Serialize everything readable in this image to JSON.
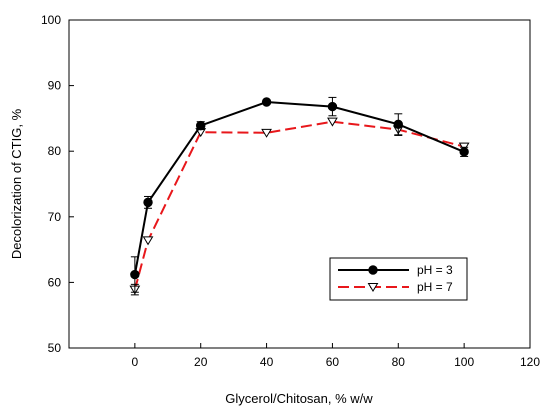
{
  "chart_data": {
    "type": "line",
    "title": "",
    "xlabel": "Glycerol/Chitosan, % w/w",
    "ylabel": "Decolorization of CTIG, %",
    "xlim": [
      -20,
      120
    ],
    "ylim": [
      50,
      100
    ],
    "xticks": [
      0,
      20,
      40,
      60,
      80,
      100,
      120
    ],
    "yticks": [
      50,
      60,
      70,
      80,
      90,
      100
    ],
    "grid": false,
    "legend_position": "lower-right",
    "series": [
      {
        "name": "pH = 3",
        "color": "#000000",
        "line_style": "solid",
        "marker": "filled-circle",
        "points": [
          {
            "x": 0,
            "y": 61.2,
            "err": 2.7
          },
          {
            "x": 4,
            "y": 72.2,
            "err": 0.9
          },
          {
            "x": 20,
            "y": 83.9,
            "err": 0.6
          },
          {
            "x": 40,
            "y": 87.5,
            "err": 0.3
          },
          {
            "x": 60,
            "y": 86.8,
            "err": 1.4
          },
          {
            "x": 80,
            "y": 84.1,
            "err": 1.6
          },
          {
            "x": 100,
            "y": 79.9,
            "err": 0.7
          }
        ]
      },
      {
        "name": "pH = 7",
        "color": "#e8171b",
        "line_style": "dashed",
        "marker": "open-triangle-down",
        "points": [
          {
            "x": 0,
            "y": 58.9,
            "err": 0.8
          },
          {
            "x": 4,
            "y": 66.4,
            "err": 0
          },
          {
            "x": 20,
            "y": 82.9,
            "err": 0
          },
          {
            "x": 40,
            "y": 82.8,
            "err": 0
          },
          {
            "x": 60,
            "y": 84.5,
            "err": 0
          },
          {
            "x": 80,
            "y": 83.3,
            "err": 0.9
          },
          {
            "x": 100,
            "y": 80.7,
            "err": 0.5
          }
        ]
      }
    ]
  }
}
